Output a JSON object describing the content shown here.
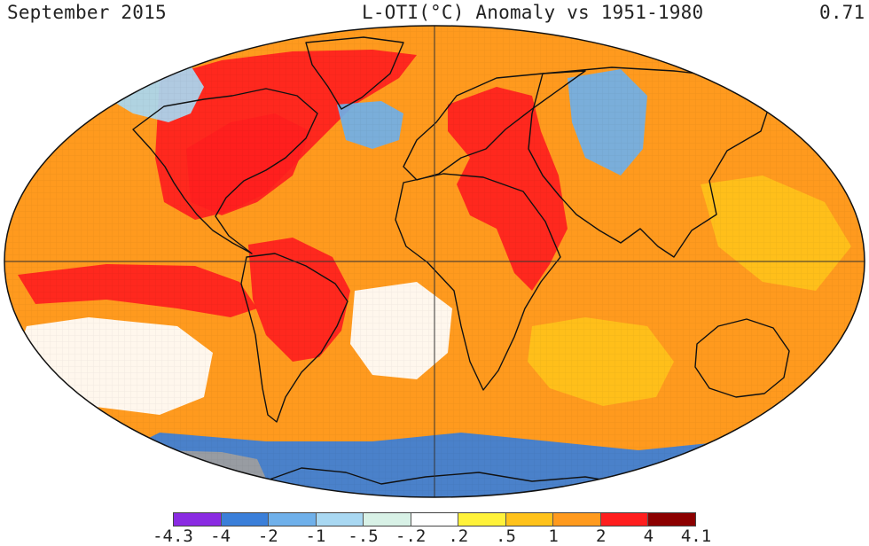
{
  "header": {
    "title": "September 2015",
    "subtitle": "L-OTI(°C) Anomaly vs 1951-1980",
    "global_mean": "0.71"
  },
  "legend": {
    "bins": [
      {
        "color": "#8a2be2"
      },
      {
        "color": "#3b7fd9"
      },
      {
        "color": "#6fb0ea"
      },
      {
        "color": "#a9d8f2"
      },
      {
        "color": "#d8f1e6"
      },
      {
        "color": "#ffffff"
      },
      {
        "color": "#fff23a"
      },
      {
        "color": "#ffc21a"
      },
      {
        "color": "#ff9a1e"
      },
      {
        "color": "#ff1e1e"
      },
      {
        "color": "#8c0000"
      }
    ],
    "ticks": [
      "-4.3",
      "-4",
      "-2",
      "-1",
      "-.5",
      "-.2",
      ".2",
      ".5",
      "1",
      "2",
      "4",
      "4.1"
    ]
  },
  "map": {
    "projection": "Robinson",
    "no_data_color": "#9e9e9e",
    "background_color": "#ff9a1e",
    "regions": [
      {
        "name": "north-atlantic-warm",
        "color": "#ff1e1e"
      },
      {
        "name": "canada-warm",
        "color": "#ff1e1e"
      },
      {
        "name": "europe-middle-east-warm",
        "color": "#ff1e1e"
      },
      {
        "name": "east-pacific-warm",
        "color": "#ff1e1e"
      },
      {
        "name": "amazon-warm",
        "color": "#ff1e1e"
      },
      {
        "name": "alaska-cool",
        "color": "#a9d8f2"
      },
      {
        "name": "north-atlantic-cool",
        "color": "#6fb0ea"
      },
      {
        "name": "siberia-cool",
        "color": "#6fb0ea"
      },
      {
        "name": "southern-ocean-cool",
        "color": "#3b7fd9"
      },
      {
        "name": "antarctic-no-data",
        "color": "#9e9e9e"
      },
      {
        "name": "south-pacific-neutral",
        "color": "#ffffff"
      },
      {
        "name": "south-atlantic-neutral",
        "color": "#ffffff"
      },
      {
        "name": "west-pacific-mild",
        "color": "#ffc21a"
      },
      {
        "name": "indian-ocean-mild",
        "color": "#ffc21a"
      }
    ]
  }
}
